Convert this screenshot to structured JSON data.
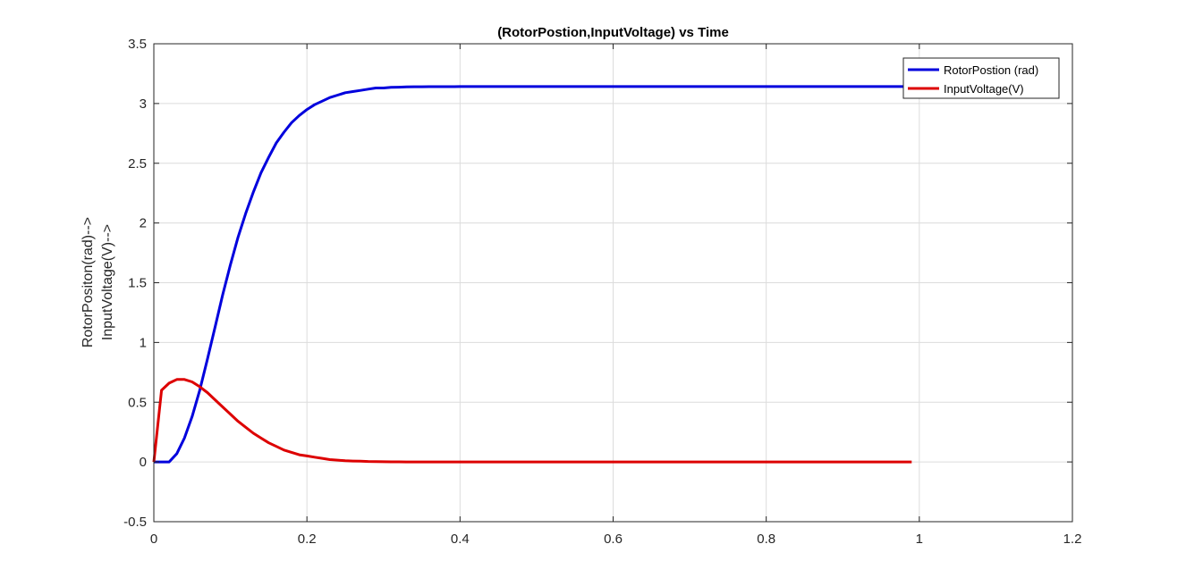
{
  "chart_data": {
    "type": "line",
    "title": "(RotorPostion,InputVoltage) vs Time",
    "xlabel": "",
    "ylabel_lines": [
      "RotorPositon(rad)-->",
      "InputVoltage(V)-->"
    ],
    "xlim": [
      0,
      1.2
    ],
    "ylim": [
      -0.5,
      3.5
    ],
    "xticks": [
      0,
      0.2,
      0.4,
      0.6,
      0.8,
      1,
      1.2
    ],
    "xtick_labels": [
      "0",
      "0.2",
      "0.4",
      "0.6",
      "0.8",
      "1",
      "1.2"
    ],
    "yticks": [
      -0.5,
      0,
      0.5,
      1,
      1.5,
      2,
      2.5,
      3,
      3.5
    ],
    "ytick_labels": [
      "-0.5",
      "0",
      "0.5",
      "1",
      "1.5",
      "2",
      "2.5",
      "3",
      "3.5"
    ],
    "grid": true,
    "legend_position": "top-right",
    "x": [
      0,
      0.01,
      0.02,
      0.03,
      0.04,
      0.05,
      0.06,
      0.07,
      0.08,
      0.09,
      0.1,
      0.11,
      0.12,
      0.13,
      0.14,
      0.15,
      0.16,
      0.17,
      0.18,
      0.19,
      0.2,
      0.21,
      0.22,
      0.23,
      0.24,
      0.25,
      0.26,
      0.27,
      0.28,
      0.29,
      0.3,
      0.31,
      0.32,
      0.33,
      0.34,
      0.35,
      0.36,
      0.37,
      0.38,
      0.39,
      0.4,
      0.41,
      0.42,
      0.43,
      0.44,
      0.45,
      0.46,
      0.47,
      0.48,
      0.49,
      0.5,
      0.51,
      0.52,
      0.53,
      0.54,
      0.55,
      0.56,
      0.57,
      0.58,
      0.59,
      0.6,
      0.61,
      0.62,
      0.63,
      0.64,
      0.65,
      0.66,
      0.67,
      0.68,
      0.69,
      0.7,
      0.71,
      0.72,
      0.73,
      0.74,
      0.75,
      0.76,
      0.77,
      0.78,
      0.79,
      0.8,
      0.81,
      0.82,
      0.83,
      0.84,
      0.85,
      0.86,
      0.87,
      0.88,
      0.89,
      0.9,
      0.91,
      0.92,
      0.93,
      0.94,
      0.95,
      0.96,
      0.97,
      0.98,
      0.99
    ],
    "series": [
      {
        "name": "RotorPostion (rad)",
        "color": "#0000dd",
        "values": [
          0,
          0,
          0,
          0.07,
          0.2,
          0.38,
          0.6,
          0.86,
          1.13,
          1.4,
          1.65,
          1.88,
          2.08,
          2.26,
          2.42,
          2.55,
          2.67,
          2.76,
          2.84,
          2.9,
          2.95,
          2.99,
          3.02,
          3.05,
          3.07,
          3.09,
          3.1,
          3.11,
          3.12,
          3.13,
          3.13,
          3.135,
          3.137,
          3.139,
          3.14,
          3.14,
          3.141,
          3.141,
          3.141,
          3.141,
          3.142,
          3.142,
          3.142,
          3.142,
          3.142,
          3.142,
          3.142,
          3.142,
          3.142,
          3.142,
          3.142,
          3.142,
          3.142,
          3.142,
          3.142,
          3.142,
          3.142,
          3.142,
          3.142,
          3.142,
          3.142,
          3.142,
          3.142,
          3.142,
          3.142,
          3.142,
          3.142,
          3.142,
          3.142,
          3.142,
          3.142,
          3.142,
          3.142,
          3.142,
          3.142,
          3.142,
          3.142,
          3.142,
          3.142,
          3.142,
          3.142,
          3.142,
          3.142,
          3.142,
          3.142,
          3.142,
          3.142,
          3.142,
          3.142,
          3.142,
          3.142,
          3.142,
          3.142,
          3.142,
          3.142,
          3.142,
          3.142,
          3.142,
          3.142,
          3.142
        ]
      },
      {
        "name": "InputVoltage(V)",
        "color": "#dd0000",
        "values": [
          0,
          0.6,
          0.66,
          0.69,
          0.69,
          0.67,
          0.63,
          0.58,
          0.52,
          0.46,
          0.4,
          0.34,
          0.29,
          0.24,
          0.2,
          0.16,
          0.13,
          0.1,
          0.08,
          0.06,
          0.05,
          0.04,
          0.03,
          0.02,
          0.015,
          0.01,
          0.008,
          0.006,
          0.004,
          0.003,
          0.002,
          0.001,
          0.001,
          0,
          0,
          0,
          0,
          0,
          0,
          0,
          0,
          0,
          0,
          0,
          0,
          0,
          0,
          0,
          0,
          0,
          0,
          0,
          0,
          0,
          0,
          0,
          0,
          0,
          0,
          0,
          0,
          0,
          0,
          0,
          0,
          0,
          0,
          0,
          0,
          0,
          0,
          0,
          0,
          0,
          0,
          0,
          0,
          0,
          0,
          0,
          0,
          0,
          0,
          0,
          0,
          0,
          0,
          0,
          0,
          0,
          0,
          0,
          0,
          0,
          0,
          0,
          0,
          0,
          0,
          0
        ]
      }
    ]
  }
}
